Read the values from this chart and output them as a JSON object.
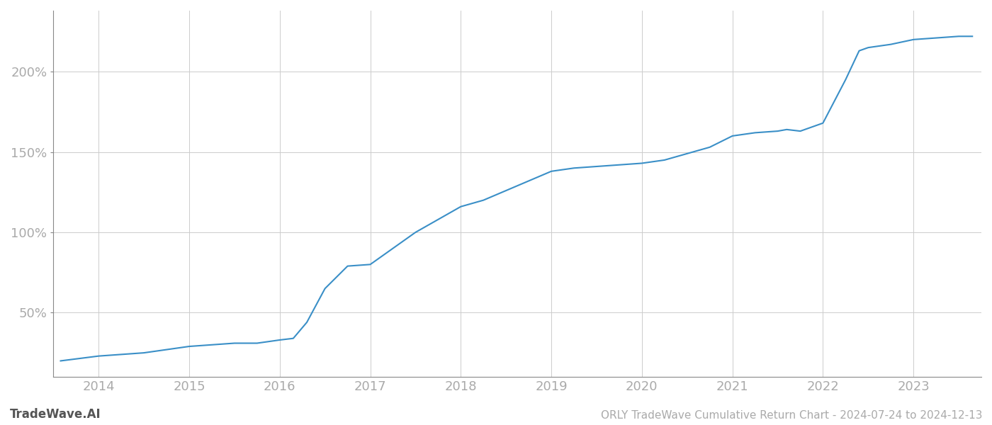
{
  "title": "ORLY TradeWave Cumulative Return Chart - 2024-07-24 to 2024-12-13",
  "watermark": "TradeWave.AI",
  "line_color": "#3a8fc7",
  "background_color": "#ffffff",
  "grid_color": "#cccccc",
  "x_years": [
    2014,
    2015,
    2016,
    2017,
    2018,
    2019,
    2020,
    2021,
    2022,
    2023
  ],
  "data_points": {
    "x": [
      2013.58,
      2014.0,
      2014.25,
      2014.5,
      2014.75,
      2015.0,
      2015.25,
      2015.5,
      2015.75,
      2016.0,
      2016.15,
      2016.3,
      2016.5,
      2016.75,
      2017.0,
      2017.25,
      2017.5,
      2017.75,
      2018.0,
      2018.25,
      2018.5,
      2018.75,
      2019.0,
      2019.25,
      2019.5,
      2019.75,
      2020.0,
      2020.25,
      2020.5,
      2020.75,
      2021.0,
      2021.25,
      2021.5,
      2021.6,
      2021.75,
      2022.0,
      2022.25,
      2022.4,
      2022.5,
      2022.75,
      2023.0,
      2023.25,
      2023.5,
      2023.65
    ],
    "y": [
      20,
      23,
      24,
      25,
      27,
      29,
      30,
      31,
      31,
      33,
      34,
      44,
      65,
      79,
      80,
      90,
      100,
      108,
      116,
      120,
      126,
      132,
      138,
      140,
      141,
      142,
      143,
      145,
      149,
      153,
      160,
      162,
      163,
      164,
      163,
      168,
      195,
      213,
      215,
      217,
      220,
      221,
      222,
      222
    ]
  },
  "ylim": [
    10,
    238
  ],
  "yticks": [
    50,
    100,
    150,
    200
  ],
  "xlim": [
    2013.5,
    2023.75
  ],
  "title_fontsize": 11,
  "tick_fontsize": 13,
  "watermark_fontsize": 12,
  "footer_fontsize": 11
}
